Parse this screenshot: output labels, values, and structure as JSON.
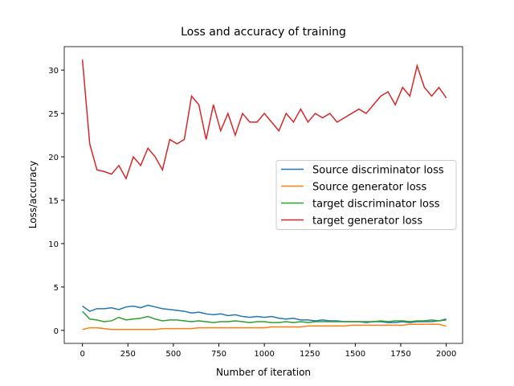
{
  "chart_data": {
    "type": "line",
    "title": "Loss and accuracy of training",
    "x_label": "Number of iteration",
    "y_label": "Loss/accuracy",
    "x": [
      0,
      40,
      80,
      120,
      160,
      200,
      240,
      280,
      320,
      360,
      400,
      440,
      480,
      520,
      560,
      600,
      640,
      680,
      720,
      760,
      800,
      840,
      880,
      920,
      960,
      1000,
      1040,
      1080,
      1120,
      1160,
      1200,
      1240,
      1280,
      1320,
      1360,
      1400,
      1440,
      1480,
      1520,
      1560,
      1600,
      1640,
      1680,
      1720,
      1760,
      1800,
      1840,
      1880,
      1920,
      1960,
      2000
    ],
    "series": [
      {
        "name": "Source discriminator loss",
        "color": "#1f77b4",
        "values": [
          2.8,
          2.2,
          2.5,
          2.5,
          2.6,
          2.4,
          2.7,
          2.8,
          2.6,
          2.9,
          2.7,
          2.5,
          2.4,
          2.3,
          2.2,
          2.0,
          2.1,
          1.9,
          1.8,
          1.9,
          1.7,
          1.8,
          1.6,
          1.5,
          1.6,
          1.5,
          1.6,
          1.4,
          1.3,
          1.4,
          1.2,
          1.2,
          1.1,
          1.2,
          1.1,
          1.1,
          1.0,
          1.0,
          1.0,
          0.9,
          1.0,
          1.0,
          0.9,
          0.9,
          1.0,
          0.9,
          1.0,
          1.0,
          1.0,
          1.1,
          1.3
        ]
      },
      {
        "name": "Source generator loss",
        "color": "#ff7f0e",
        "values": [
          0.1,
          0.3,
          0.3,
          0.2,
          0.1,
          0.1,
          0.1,
          0.1,
          0.1,
          0.1,
          0.1,
          0.2,
          0.2,
          0.2,
          0.2,
          0.2,
          0.3,
          0.3,
          0.3,
          0.3,
          0.3,
          0.3,
          0.3,
          0.3,
          0.3,
          0.3,
          0.4,
          0.4,
          0.4,
          0.4,
          0.4,
          0.5,
          0.5,
          0.5,
          0.5,
          0.5,
          0.5,
          0.6,
          0.6,
          0.6,
          0.6,
          0.6,
          0.6,
          0.6,
          0.6,
          0.7,
          0.7,
          0.7,
          0.7,
          0.7,
          0.5
        ]
      },
      {
        "name": "target discriminator loss",
        "color": "#2ca02c",
        "values": [
          2.2,
          1.3,
          1.2,
          1.0,
          1.1,
          1.5,
          1.2,
          1.3,
          1.4,
          1.6,
          1.3,
          1.1,
          1.2,
          1.2,
          1.1,
          1.0,
          1.1,
          1.0,
          0.9,
          1.0,
          1.0,
          1.1,
          1.0,
          0.9,
          1.0,
          1.0,
          0.9,
          0.9,
          1.0,
          0.9,
          1.0,
          0.9,
          1.0,
          1.0,
          1.0,
          1.0,
          1.0,
          1.0,
          1.0,
          1.0,
          1.0,
          1.1,
          1.0,
          1.1,
          1.1,
          1.0,
          1.1,
          1.1,
          1.2,
          1.1,
          1.2
        ]
      },
      {
        "name": "target generator loss",
        "color": "#d62728",
        "values": [
          31.2,
          21.5,
          18.5,
          18.3,
          18,
          19,
          17.5,
          20,
          19,
          21,
          20,
          18.5,
          22,
          21.5,
          22,
          27,
          26,
          22,
          26,
          23,
          25,
          22.5,
          25,
          24,
          24,
          25,
          24,
          23,
          25,
          24,
          25.5,
          24,
          25,
          24.5,
          25,
          24,
          24.5,
          25,
          25.5,
          25,
          26,
          27,
          27.5,
          26,
          28,
          27,
          30.5,
          28,
          27,
          28,
          26.8
        ]
      }
    ],
    "xlim": [
      -100,
      2090
    ],
    "ylim": [
      -1.5,
      32.7
    ],
    "xticks": [
      0,
      250,
      500,
      750,
      1000,
      1250,
      1500,
      1750,
      2000
    ],
    "yticks": [
      0,
      5,
      10,
      15,
      20,
      25,
      30
    ],
    "legend": "center right"
  }
}
